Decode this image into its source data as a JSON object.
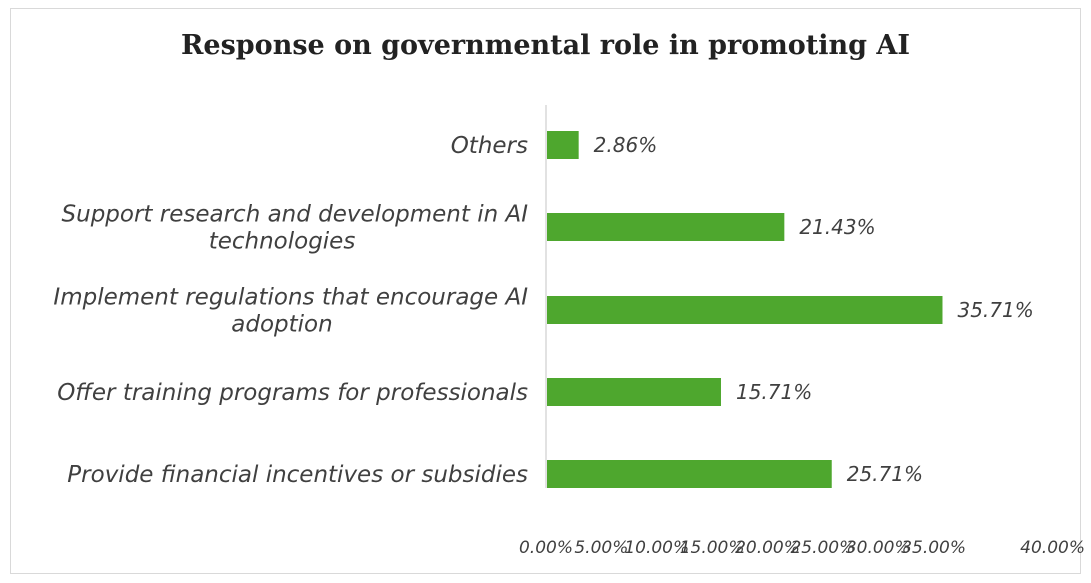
{
  "chart_data": {
    "type": "bar",
    "orientation": "horizontal",
    "title": "Response on governmental role in promoting AI",
    "categories": [
      [
        "Others"
      ],
      [
        "Support research and development in AI",
        "technologies"
      ],
      [
        "Implement regulations that encourage AI",
        "adoption"
      ],
      [
        "Offer training programs for professionals"
      ],
      [
        "Provide financial incentives or subsidies"
      ]
    ],
    "values": [
      2.86,
      21.43,
      35.71,
      15.71,
      25.71
    ],
    "value_labels": [
      "2.86%",
      "21.43%",
      "35.71%",
      "15.71%",
      "25.71%"
    ],
    "xlim": [
      0,
      40
    ],
    "x_ticks": [
      "0.00%",
      "5.00%",
      "10.00%",
      "15.00%",
      "20.00%",
      "25.00%",
      "30.00%",
      "35.00%",
      "40.00%"
    ],
    "bar_color": "#4ea72e",
    "grid": false,
    "legend": "none"
  }
}
